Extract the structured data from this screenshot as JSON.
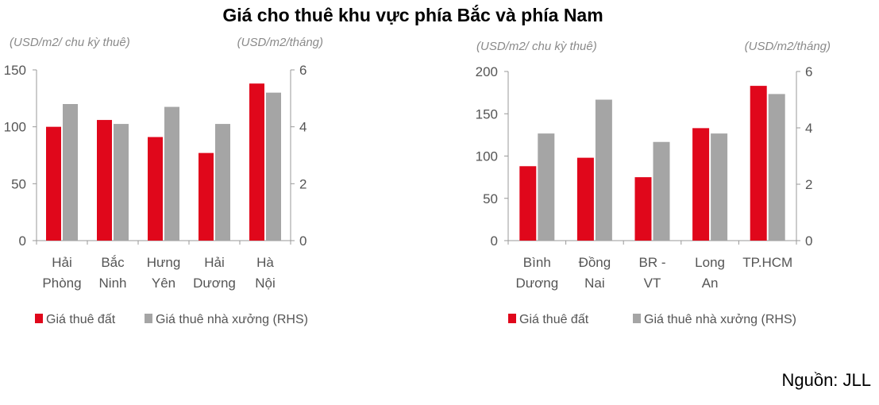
{
  "title": "Giá cho thuê khu vực phía Bắc và phía Nam",
  "source": "Nguồn: JLL",
  "chart_data": [
    {
      "type": "bar",
      "categories": [
        [
          "Hải",
          "Phòng"
        ],
        [
          "Bắc",
          "Ninh"
        ],
        [
          "Hưng",
          "Yên"
        ],
        [
          "Hải",
          "Dương"
        ],
        [
          "Hà",
          "Nội"
        ]
      ],
      "ylabel_left": "(USD/m2/ chu kỳ thuê)",
      "ylabel_right": "(USD/m2/tháng)",
      "ylim_left": [
        0,
        150
      ],
      "yticks_left": [
        0,
        50,
        100,
        150
      ],
      "ylim_right": [
        0,
        6
      ],
      "yticks_right": [
        0,
        2,
        4,
        6
      ],
      "legend_position": "bottom",
      "grid": false,
      "series": [
        {
          "name": "Giá thuê đất",
          "axis": "left",
          "color": "#e0071b",
          "values": [
            100,
            106,
            91,
            77,
            138
          ]
        },
        {
          "name": "Giá thuê nhà xưởng (RHS)",
          "axis": "right",
          "color": "#a5a5a5",
          "values": [
            4.8,
            4.1,
            4.7,
            4.1,
            5.2
          ]
        }
      ]
    },
    {
      "type": "bar",
      "categories": [
        [
          "Bình",
          "Dương"
        ],
        [
          "Đồng",
          "Nai"
        ],
        [
          "BR -",
          "VT"
        ],
        [
          "Long",
          "An"
        ],
        [
          "TP.HCM"
        ]
      ],
      "ylabel_left": "(USD/m2/ chu kỳ thuê)",
      "ylabel_right": "(USD/m2/tháng)",
      "ylim_left": [
        0,
        200
      ],
      "yticks_left": [
        0,
        50,
        100,
        150,
        200
      ],
      "ylim_right": [
        0,
        6
      ],
      "yticks_right": [
        0,
        2,
        4,
        6
      ],
      "legend_position": "bottom",
      "grid": false,
      "series": [
        {
          "name": "Giá thuê đất",
          "axis": "left",
          "color": "#e0071b",
          "values": [
            88,
            98,
            75,
            133,
            183
          ]
        },
        {
          "name": "Giá thuê nhà xưởng (RHS)",
          "axis": "right",
          "color": "#a5a5a5",
          "values": [
            3.8,
            5.0,
            3.5,
            3.8,
            5.2
          ]
        }
      ]
    }
  ]
}
